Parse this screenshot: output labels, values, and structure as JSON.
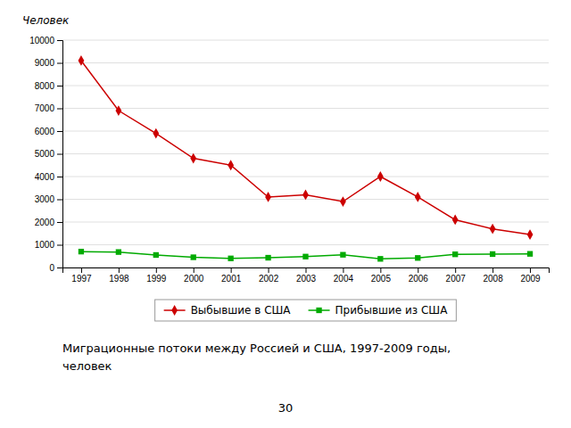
{
  "chart_data": {
    "type": "line",
    "title": [
      "Миграционные потоки между Россией и  США, 1997-2009 годы,",
      "человек"
    ],
    "ylabel": "Человек",
    "annotations": [
      "30"
    ],
    "x": [
      1997,
      1998,
      1999,
      2000,
      2001,
      2002,
      2003,
      2004,
      2005,
      2006,
      2007,
      2008,
      2009
    ],
    "xlim": [
      1996.5,
      2009.5
    ],
    "xticks": [
      1997,
      1998,
      1999,
      2000,
      2001,
      2002,
      2003,
      2004,
      2005,
      2006,
      2007,
      2008,
      2009
    ],
    "ylim": [
      0,
      10000
    ],
    "yticks": [
      0,
      1000,
      2000,
      3000,
      4000,
      5000,
      6000,
      7000,
      8000,
      9000,
      10000
    ],
    "grid": "y",
    "legend": "bottom",
    "series": [
      {
        "name": "Выбывшие в США",
        "color": "#cc0000",
        "marker": "diamond",
        "values": [
          9100,
          6900,
          5900,
          4800,
          4500,
          3100,
          3200,
          2900,
          4000,
          3100,
          2100,
          1700,
          1450
        ]
      },
      {
        "name": "Прибывшие из США",
        "color": "#00aa00",
        "marker": "square",
        "values": [
          700,
          680,
          550,
          450,
          400,
          430,
          480,
          560,
          380,
          420,
          580,
          590,
          600
        ]
      }
    ]
  }
}
